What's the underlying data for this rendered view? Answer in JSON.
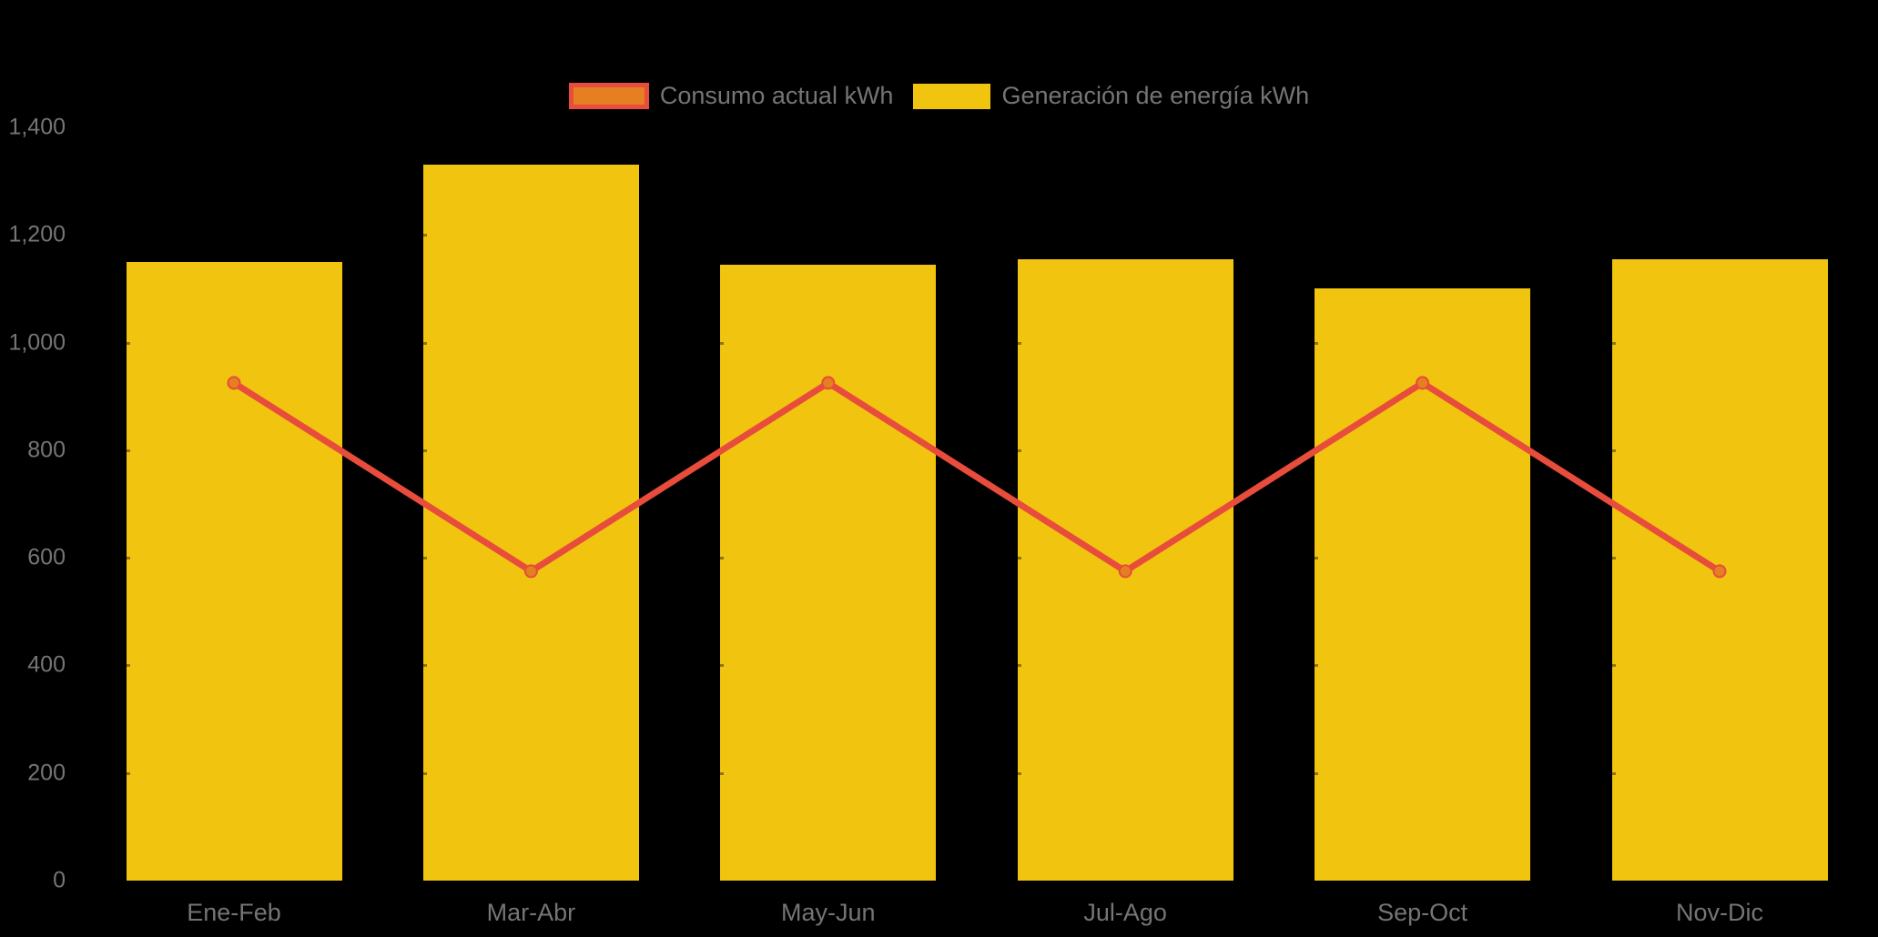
{
  "chart_data": {
    "type": "bar+line combo",
    "categories": [
      "Ene-Feb",
      "Mar-Abr",
      "May-Jun",
      "Jul-Ago",
      "Sep-Oct",
      "Nov-Dic"
    ],
    "series": [
      {
        "name": "Consumo actual kWh",
        "type": "line",
        "color": "#E74C3C",
        "marker_color": "#E67E22",
        "values": [
          925,
          575,
          925,
          575,
          925,
          575
        ]
      },
      {
        "name": "Generación de energía kWh",
        "type": "bar",
        "color": "#F1C40F",
        "values": [
          1150,
          1330,
          1145,
          1155,
          1100,
          1155
        ]
      }
    ],
    "title": "",
    "xlabel": "",
    "ylabel": "",
    "ylim": [
      0,
      1400
    ],
    "yticks": [
      {
        "value": 0,
        "label": "0"
      },
      {
        "value": 200,
        "label": "200"
      },
      {
        "value": 400,
        "label": "400"
      },
      {
        "value": 600,
        "label": "600"
      },
      {
        "value": 800,
        "label": "800"
      },
      {
        "value": 1000,
        "label": "1,000"
      },
      {
        "value": 1200,
        "label": "1,200"
      },
      {
        "value": 1400,
        "label": "1,400"
      }
    ],
    "legend_position": "top-center",
    "grid": false,
    "background": "#000000",
    "text_color": "#757575"
  }
}
